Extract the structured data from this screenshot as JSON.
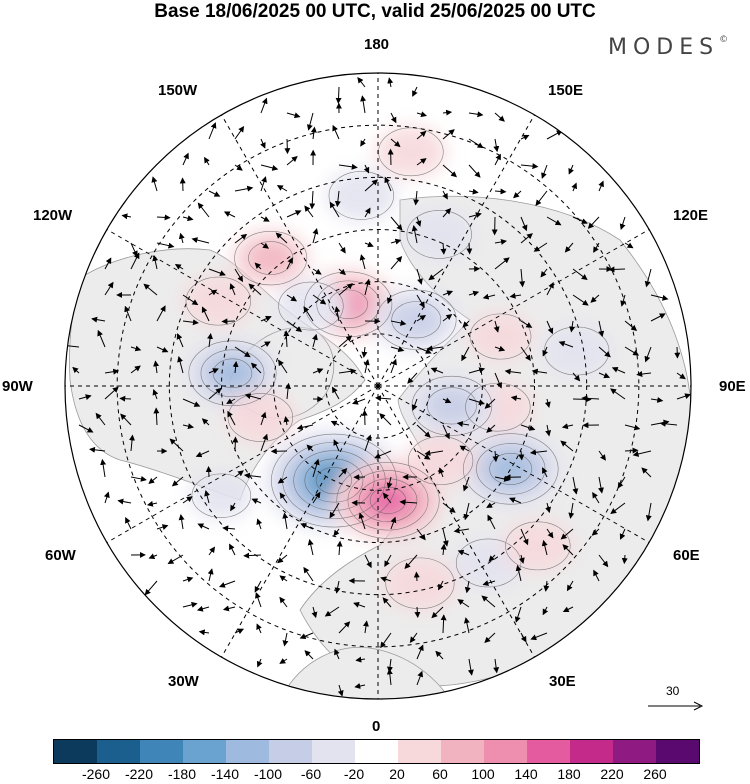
{
  "title": "Base 18/06/2025 00 UTC, valid 25/06/2025 00 UTC",
  "brand": "MODES",
  "brand_mark": "©",
  "longitude_labels": {
    "lon_180": "180",
    "lon_150e": "150E",
    "lon_120e": "120E",
    "lon_90e": "90E",
    "lon_60e": "60E",
    "lon_30e": "30E",
    "lon_0": "0",
    "lon_30w": "30W",
    "lon_60w": "60W",
    "lon_90w": "90W",
    "lon_120w": "120W",
    "lon_150w": "150W"
  },
  "vector_scale_label": "30",
  "colorbar": {
    "colors": [
      "#0b3a5c",
      "#1a5f8e",
      "#3f85b8",
      "#6aa3cf",
      "#9fbadf",
      "#c6cde6",
      "#e3e3f0",
      "#ffffff",
      "#f7d9dc",
      "#f2b3c0",
      "#ee8fb0",
      "#e55ba0",
      "#c42a8a",
      "#8e1a82",
      "#5a0a6e"
    ],
    "ticks": [
      "-260",
      "-220",
      "-180",
      "-140",
      "-100",
      "-60",
      "-20",
      "20",
      "60",
      "100",
      "140",
      "180",
      "220",
      "260"
    ]
  },
  "anomaly_blobs": [
    {
      "lon": -95,
      "colat": 42,
      "value": -120
    },
    {
      "lon": -25,
      "colat": 30,
      "value": -220
    },
    {
      "lon": 5,
      "colat": 33,
      "value": 160
    },
    {
      "lon": 12,
      "colat": 58,
      "value": 70
    },
    {
      "lon": 32,
      "colat": 60,
      "value": -60
    },
    {
      "lon": 58,
      "colat": 45,
      "value": -140
    },
    {
      "lon": 80,
      "colat": 35,
      "value": 60
    },
    {
      "lon": 112,
      "colat": 38,
      "value": 50
    },
    {
      "lon": 100,
      "colat": 58,
      "value": -60
    },
    {
      "lon": 158,
      "colat": 47,
      "value": -60
    },
    {
      "lon": 172,
      "colat": 68,
      "value": 60
    },
    {
      "lon": -175,
      "colat": 55,
      "value": -60
    },
    {
      "lon": -160,
      "colat": 25,
      "value": 120
    },
    {
      "lon": -140,
      "colat": 48,
      "value": 80
    },
    {
      "lon": -118,
      "colat": 52,
      "value": 60
    },
    {
      "lon": 150,
      "colat": 22,
      "value": -100
    },
    {
      "lon": 75,
      "colat": 22,
      "value": -100
    },
    {
      "lon": 40,
      "colat": 28,
      "value": 60
    },
    {
      "lon": -75,
      "colat": 35,
      "value": 60
    },
    {
      "lon": -55,
      "colat": 55,
      "value": -40
    },
    {
      "lon": 45,
      "colat": 65,
      "value": 60
    },
    {
      "lon": -140,
      "colat": 30,
      "value": -60
    }
  ]
}
